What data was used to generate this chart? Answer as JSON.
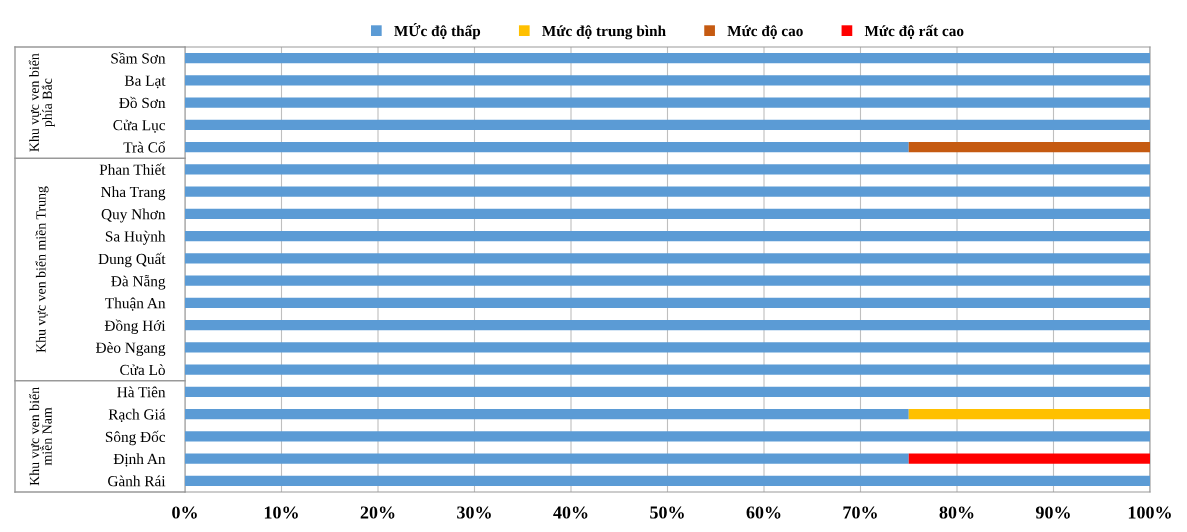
{
  "chart_data": {
    "type": "bar",
    "orientation": "horizontal",
    "stacked": true,
    "categories": [
      "Sầm Sơn",
      "Ba Lạt",
      "Đồ Sơn",
      "Cửa Lục",
      "Trà Cổ",
      "Phan Thiết",
      "Nha Trang",
      "Quy Nhơn",
      "Sa Huỳnh",
      "Dung Quất",
      "Đà Nẵng",
      "Thuận An",
      "Đồng Hới",
      "Đèo Ngang",
      "Cửa Lò",
      "Hà Tiên",
      "Rạch Giá",
      "Sông Đốc",
      "Định An",
      "Gành Rái"
    ],
    "series": [
      {
        "name": "MỨc độ thấp",
        "color": "#5b9bd5",
        "values": [
          100,
          100,
          100,
          100,
          75,
          100,
          100,
          100,
          100,
          100,
          100,
          100,
          100,
          100,
          100,
          100,
          75,
          100,
          75,
          100
        ]
      },
      {
        "name": "Mức độ trung bình",
        "color": "#ffc000",
        "values": [
          0,
          0,
          0,
          0,
          0,
          0,
          0,
          0,
          0,
          0,
          0,
          0,
          0,
          0,
          0,
          0,
          25,
          0,
          0,
          0
        ]
      },
      {
        "name": "Mức độ cao",
        "color": "#c55a11",
        "values": [
          0,
          0,
          0,
          0,
          25,
          0,
          0,
          0,
          0,
          0,
          0,
          0,
          0,
          0,
          0,
          0,
          0,
          0,
          0,
          0
        ]
      },
      {
        "name": "Mức độ rất cao",
        "color": "#ff0000",
        "values": [
          0,
          0,
          0,
          0,
          0,
          0,
          0,
          0,
          0,
          0,
          0,
          0,
          0,
          0,
          0,
          0,
          0,
          0,
          25,
          0
        ]
      }
    ],
    "xlim": [
      0,
      100
    ],
    "xticks": [
      {
        "value": 0,
        "label": "0%"
      },
      {
        "value": 10,
        "label": "10%"
      },
      {
        "value": 20,
        "label": "20%"
      },
      {
        "value": 30,
        "label": "30%"
      },
      {
        "value": 40,
        "label": "40%"
      },
      {
        "value": 50,
        "label": "50%"
      },
      {
        "value": 60,
        "label": "60%"
      },
      {
        "value": 70,
        "label": "70%"
      },
      {
        "value": 80,
        "label": "80%"
      },
      {
        "value": 90,
        "label": "90%"
      },
      {
        "value": 100,
        "label": "100%"
      }
    ],
    "grid": "x",
    "legend": "top",
    "annotations": [
      "Khu vực ven biển phía Bắc",
      "Khu vực ven biển miền Trung",
      "Khu vực ven biển miền Nam"
    ]
  }
}
